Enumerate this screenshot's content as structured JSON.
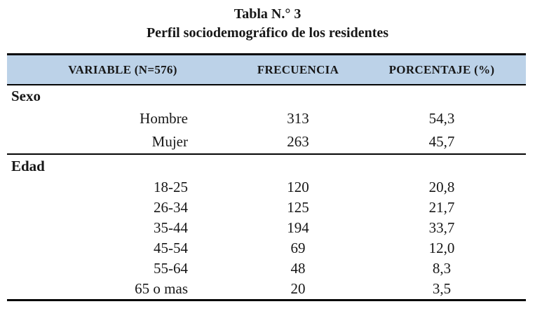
{
  "title": "Tabla N.° 3",
  "subtitle": "Perfil sociodemográfico de los residentes",
  "table": {
    "columns": [
      "VARIABLE (N=576)",
      "FRECUENCIA",
      "PORCENTAJE (%)"
    ],
    "sections": [
      {
        "label": "Sexo",
        "rows": [
          [
            "Hombre",
            "313",
            "54,3"
          ],
          [
            "Mujer",
            "263",
            "45,7"
          ]
        ]
      },
      {
        "label": "Edad",
        "rows": [
          [
            "18-25",
            "120",
            "20,8"
          ],
          [
            "26-34",
            "125",
            "21,7"
          ],
          [
            "35-44",
            "194",
            "33,7"
          ],
          [
            "45-54",
            "69",
            "12,0"
          ],
          [
            "55-64",
            "48",
            "8,3"
          ],
          [
            "65 o mas",
            "20",
            "3,5"
          ]
        ]
      }
    ]
  },
  "colors": {
    "header_bg": "#BCD2E8",
    "border": "#050505",
    "text": "#171717"
  }
}
